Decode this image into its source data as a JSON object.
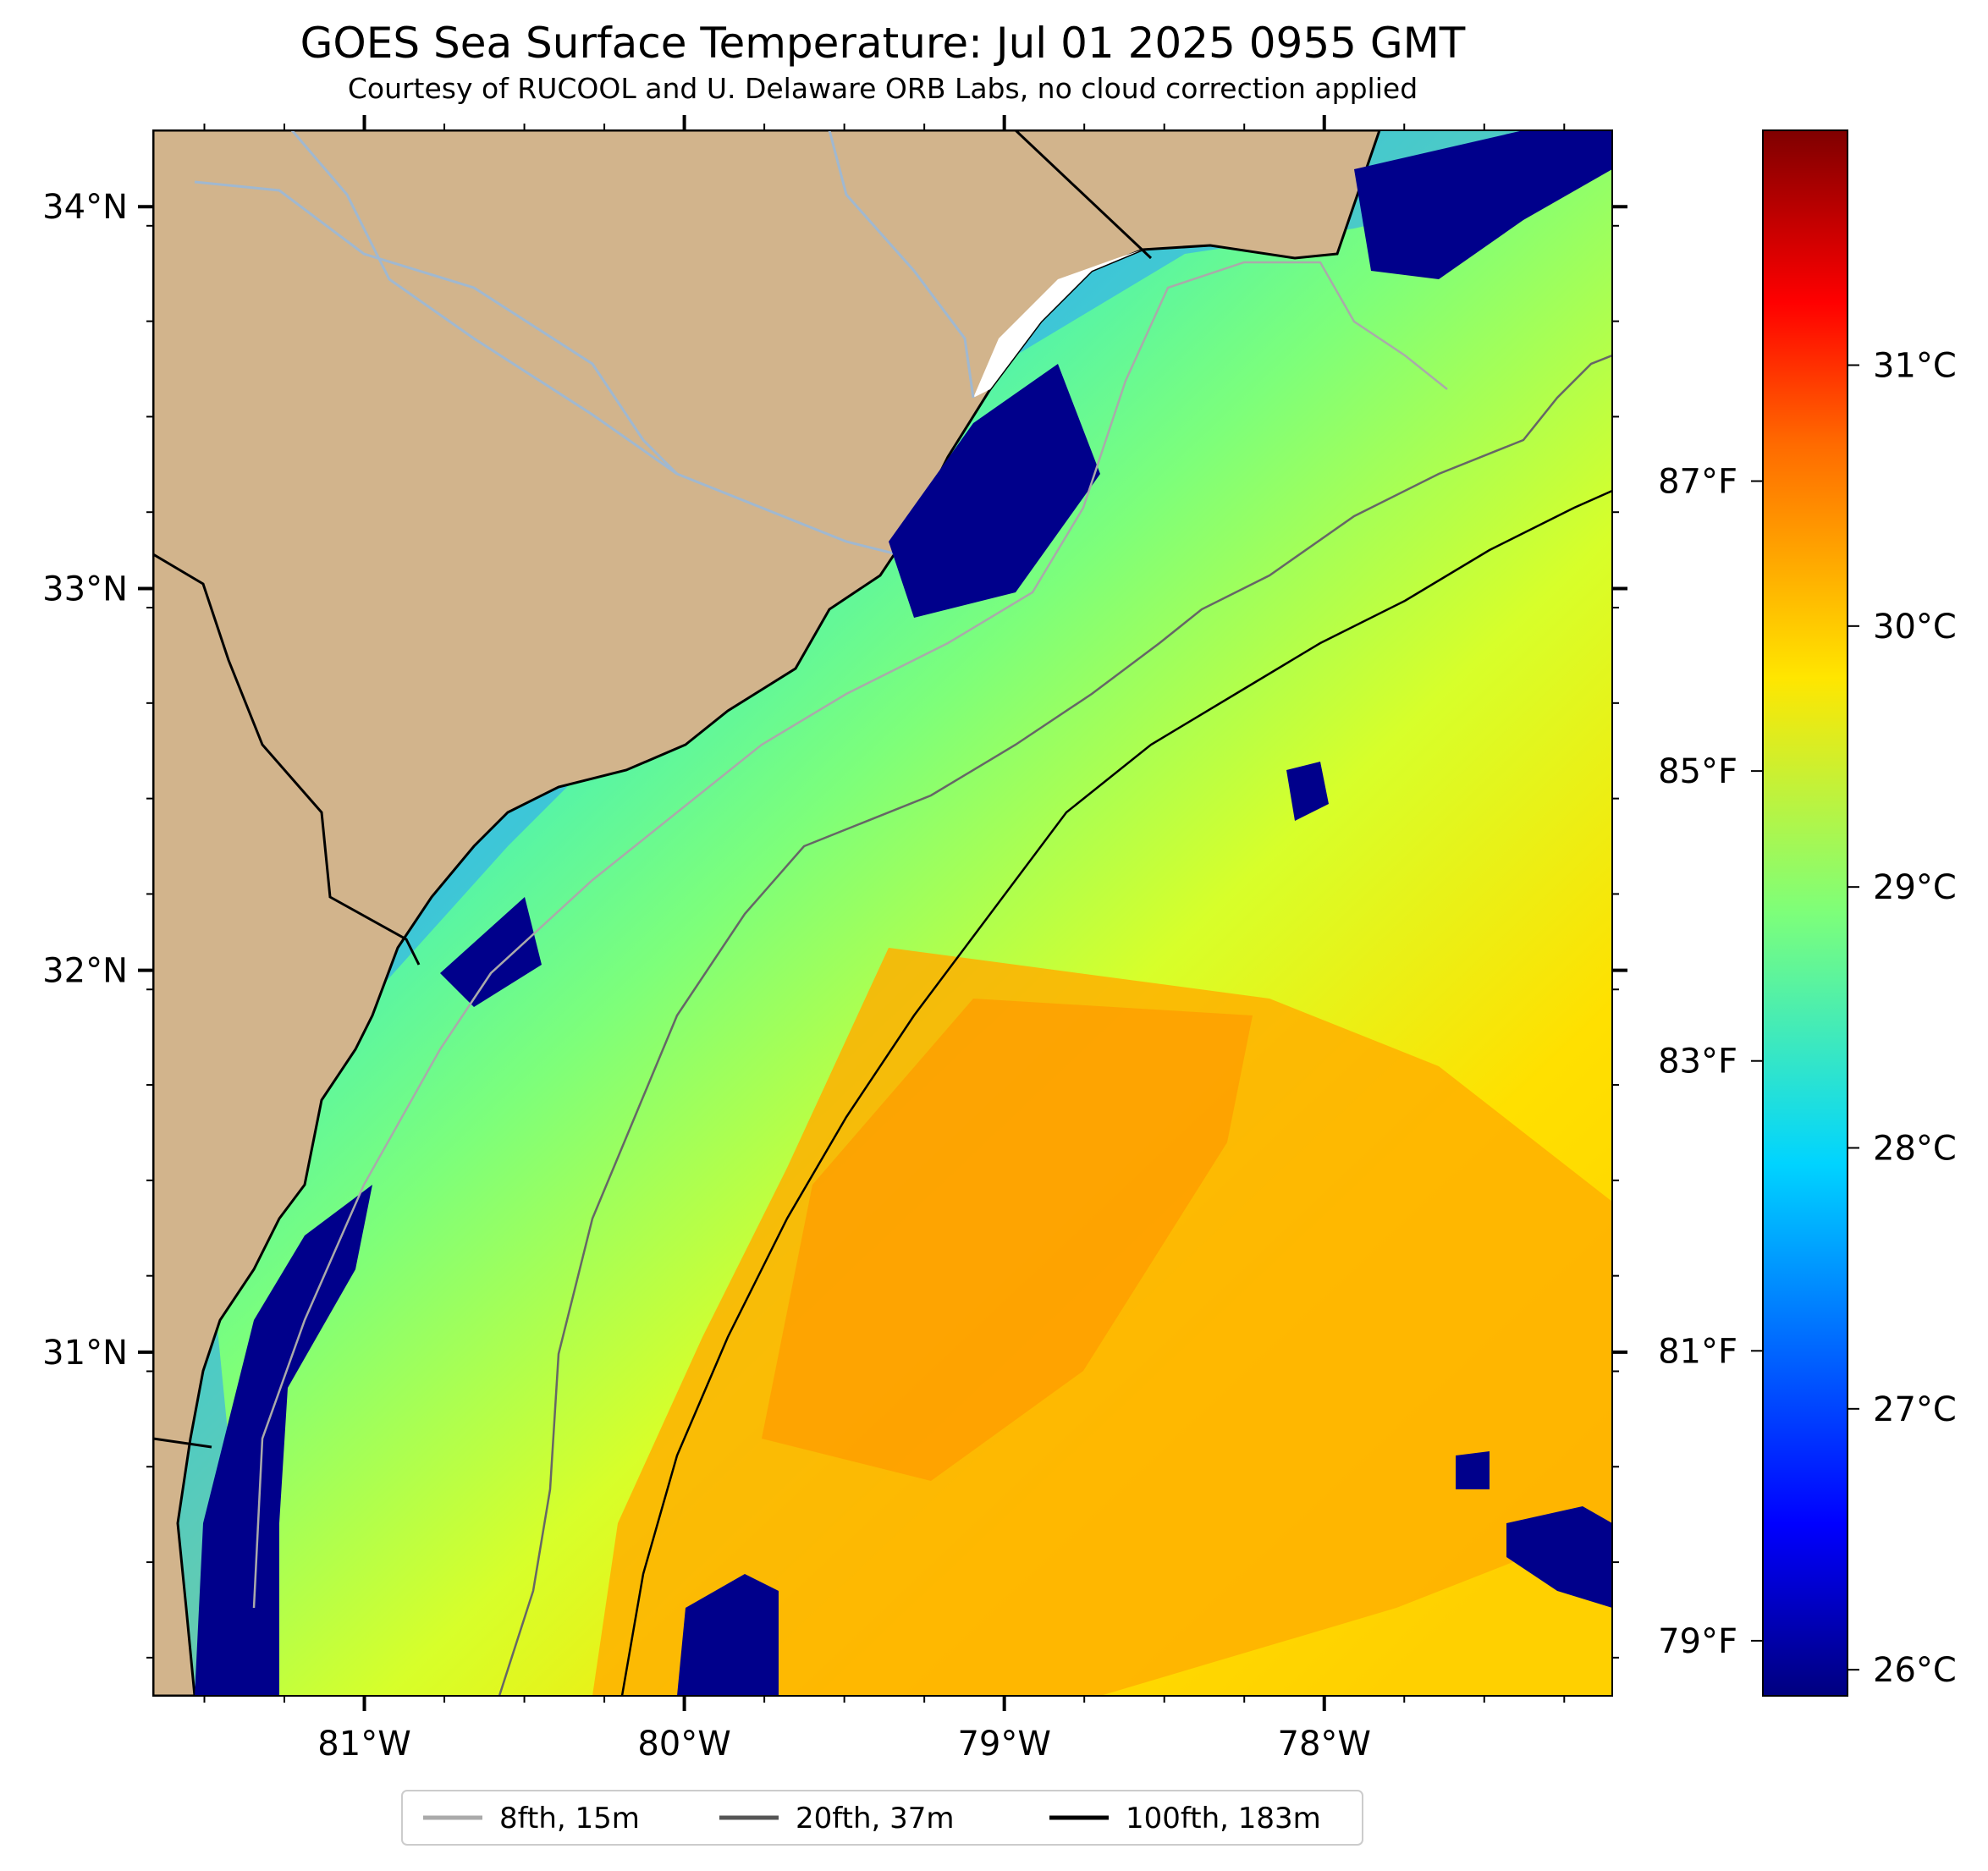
{
  "title": "GOES Sea Surface Temperature: Jul 01 2025 0955 GMT",
  "subtitle": "Courtesy of RUCOOL and U. Delaware ORB Labs, no cloud correction applied",
  "map": {
    "lat_range": [
      30.1,
      34.2
    ],
    "lon_range": [
      -81.66,
      -77.1
    ],
    "lat_labels": [
      "34°N",
      "33°N",
      "32°N",
      "31°N"
    ],
    "lat_values": [
      34,
      33,
      32,
      31
    ],
    "lon_labels": [
      "81°W",
      "80°W",
      "79°W",
      "78°W"
    ],
    "lon_values": [
      -81,
      -80,
      -79,
      -78
    ]
  },
  "colorbar": {
    "colormap": "jet",
    "celsius_range": [
      25.9,
      31.9
    ],
    "celsius_labels": [
      "31°C",
      "30°C",
      "29°C",
      "28°C",
      "27°C",
      "26°C"
    ],
    "celsius_values": [
      31,
      30,
      29,
      28,
      27,
      26
    ],
    "fahrenheit_labels": [
      "87°F",
      "85°F",
      "83°F",
      "81°F",
      "79°F"
    ],
    "fahrenheit_values": [
      87,
      85,
      83,
      81,
      79
    ]
  },
  "legend": {
    "placement": "bottom-center",
    "items": [
      {
        "label": "8fth, 15m",
        "color": "#aaaaaa"
      },
      {
        "label": "20fth, 37m",
        "color": "#555555"
      },
      {
        "label": "100fth, 183m",
        "color": "#000000"
      }
    ]
  },
  "colors": {
    "land": "#d2b48c",
    "river": "#a0b8d0",
    "coastline": "#000000",
    "cloud_mask": "#00008b"
  }
}
